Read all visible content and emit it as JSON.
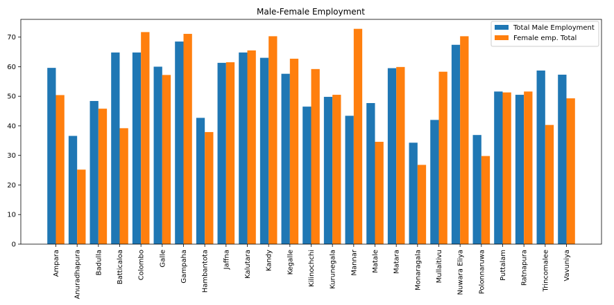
{
  "chart_data": {
    "type": "bar",
    "title": "Male-Female Employment",
    "xlabel": "",
    "ylabel": "",
    "ylim": [
      0,
      76
    ],
    "yticks": [
      0,
      10,
      20,
      30,
      40,
      50,
      60,
      70
    ],
    "grid": false,
    "legend_position": "top-right",
    "categories": [
      "Ampara",
      "Anuradhapura",
      "Badulla",
      "Batticaloa",
      "Colombo",
      "Galle",
      "Gampaha",
      "Hambantota",
      "Jaffna",
      "Kalutara",
      "Kandy",
      "Kegalle",
      "Kilinochchi",
      "Kurunegala",
      "Mannar",
      "Matale",
      "Matara",
      "Monaragala",
      "Mullaitivu",
      "Nuwara Eliya",
      "Polonnaruwa",
      "Puttalam",
      "Ratnapura",
      "Trincomalee",
      "Vavuniya"
    ],
    "series": [
      {
        "name": "Total Male Employment",
        "color": "#1f77b4",
        "values": [
          59.6,
          36.6,
          48.4,
          64.8,
          64.8,
          60.0,
          68.5,
          42.7,
          61.3,
          64.8,
          63.0,
          57.6,
          46.5,
          49.8,
          43.4,
          47.7,
          59.5,
          34.3,
          42.0,
          67.4,
          36.9,
          51.6,
          50.5,
          58.7,
          57.3
        ]
      },
      {
        "name": "Female emp. Total",
        "color": "#ff7f0e",
        "values": [
          50.4,
          25.2,
          45.8,
          39.2,
          71.7,
          57.2,
          71.1,
          37.9,
          61.5,
          65.5,
          70.3,
          62.7,
          59.2,
          50.5,
          72.8,
          34.6,
          59.9,
          26.8,
          58.3,
          70.3,
          29.8,
          51.3,
          51.6,
          40.3,
          49.3
        ]
      }
    ]
  }
}
